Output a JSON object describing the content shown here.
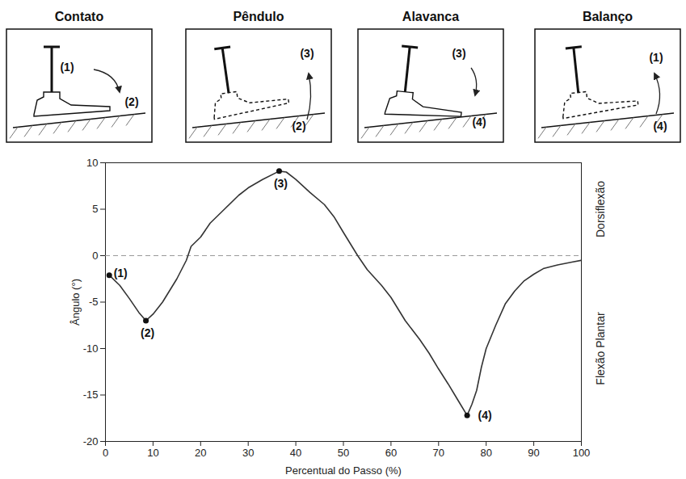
{
  "chart_data": {
    "type": "line",
    "x_label": "Percentual do Passo (%)",
    "y_label": "Ângulo (°)",
    "xlim": [
      0,
      100
    ],
    "xticks": [
      0,
      10,
      20,
      30,
      40,
      50,
      60,
      70,
      80,
      90,
      100
    ],
    "ylim": [
      -20,
      10
    ],
    "yticks": [
      -20,
      -15,
      -10,
      -5,
      0,
      5,
      10
    ],
    "grid": false,
    "series": [
      {
        "name": "Ângulo",
        "color": "#333333",
        "line_style": "solid",
        "x": [
          0.8,
          3,
          5,
          7,
          8.5,
          10,
          12,
          15,
          17,
          18,
          20,
          22,
          25,
          28,
          30,
          33,
          36.5,
          38,
          40,
          43,
          46,
          48,
          50,
          53,
          55,
          58,
          60,
          63,
          66,
          68,
          70,
          72,
          74,
          76,
          77,
          78,
          79,
          80,
          82,
          84,
          86,
          88,
          90,
          92,
          95,
          98,
          100
        ],
        "values": [
          -2.1,
          -3.2,
          -4.6,
          -6.1,
          -7,
          -6.3,
          -5,
          -2.5,
          -0.5,
          1,
          2,
          3.5,
          5,
          6.5,
          7.3,
          8.2,
          9.1,
          9,
          8.2,
          6.8,
          5.5,
          4.2,
          2.5,
          0,
          -1.5,
          -3.2,
          -4.5,
          -7,
          -9,
          -10.5,
          -12.2,
          -13.8,
          -15.5,
          -17.2,
          -16,
          -14.5,
          -12,
          -10,
          -7.5,
          -5.2,
          -3.8,
          -2.7,
          -2,
          -1.4,
          -1,
          -0.7,
          -0.5
        ]
      }
    ],
    "rules": [
      {
        "value": 0,
        "line_style": "dashed"
      }
    ],
    "annotations": [
      {
        "x": 0.8,
        "y": -2.1,
        "text": "(1)"
      },
      {
        "x": 8.5,
        "y": -7,
        "text": "(2)"
      },
      {
        "x": 36.5,
        "y": 9.1,
        "text": "(3)"
      },
      {
        "x": 76,
        "y": -17.2,
        "text": "(4)"
      }
    ],
    "region_labels": [
      {
        "text": "Dorsiflexão",
        "value": 5
      },
      {
        "text": "Flexão Plantar",
        "value": -10
      }
    ]
  },
  "panels": [
    {
      "title": "Contato",
      "labels": [
        "(1)",
        "(2)"
      ]
    },
    {
      "title": "Pêndulo",
      "labels": [
        "(3)",
        "(2)"
      ]
    },
    {
      "title": "Alavanca",
      "labels": [
        "(3)",
        "(4)"
      ]
    },
    {
      "title": "Balanço",
      "labels": [
        "(1)",
        "(4)"
      ]
    }
  ]
}
